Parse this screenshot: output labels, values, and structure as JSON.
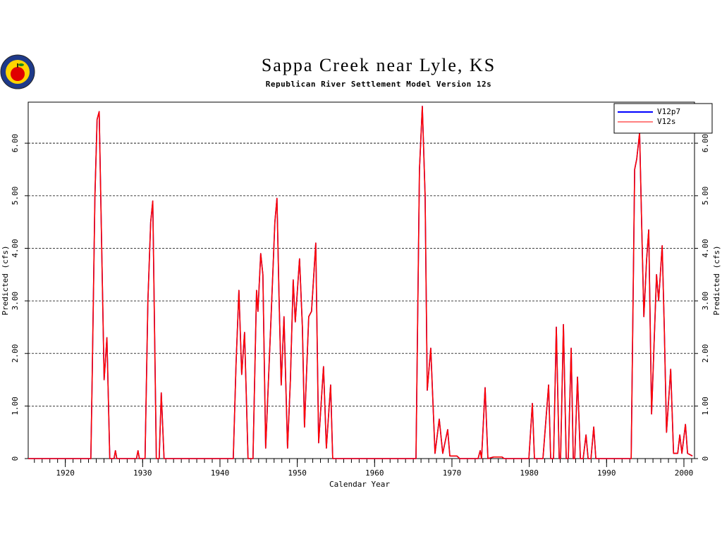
{
  "chart_data": {
    "type": "line",
    "title": "Sappa Creek near Lyle, KS",
    "subtitle": "Republican River Settlement Model Version 12s",
    "xlabel": "Calendar Year",
    "ylabel": "Predicted (cfs)",
    "y2label": "Predicted (cfs)",
    "xlim": [
      1915.2,
      2001.37
    ],
    "xticks": [
      1920,
      1930,
      1940,
      1950,
      1960,
      1970,
      1980,
      1990,
      2000
    ],
    "ylim": [
      0,
      6.78
    ],
    "yticks": [
      0,
      {
        "value": 1,
        "label": "1.00"
      },
      {
        "value": 2,
        "label": "2.00"
      },
      {
        "value": 3,
        "label": "3.00"
      },
      {
        "value": 4,
        "label": "4.00"
      },
      {
        "value": 5,
        "label": "5.00"
      },
      {
        "value": 6,
        "label": "6.00"
      }
    ],
    "y2lim": [
      0,
      6.78
    ],
    "y2ticks": [
      0,
      {
        "value": 1,
        "label": "1.00"
      },
      {
        "value": 2,
        "label": "2.00"
      },
      {
        "value": 3,
        "label": "3.00"
      },
      {
        "value": 4,
        "label": "4.00"
      },
      {
        "value": 5,
        "label": "5.00"
      },
      {
        "value": 6,
        "label": "6.00"
      }
    ],
    "grid": true,
    "legend": "upper right",
    "x": [
      1915.2,
      1923.3,
      1923.47,
      1923.83,
      1924.11,
      1924.38,
      1925.02,
      1925.38,
      1925.75,
      1926.3,
      1926.48,
      1926.66,
      1929.2,
      1929.4,
      1929.58,
      1930.31,
      1930.68,
      1931.04,
      1931.31,
      1931.77,
      1932.14,
      1932.41,
      1932.77,
      1941.72,
      1942.08,
      1942.45,
      1942.81,
      1943.18,
      1943.63,
      1944.27,
      1944.73,
      1944.91,
      1945.27,
      1945.55,
      1945.91,
      1946.64,
      1947.1,
      1947.37,
      1947.65,
      1947.92,
      1948.28,
      1948.74,
      1949.11,
      1949.47,
      1949.74,
      1950.29,
      1950.66,
      1950.93,
      1951.48,
      1951.84,
      1952.39,
      1952.76,
      1953.39,
      1953.76,
      1954.31,
      1954.58,
      1965.35,
      1965.8,
      1966.17,
      1966.53,
      1966.81,
      1967.26,
      1967.81,
      1968.36,
      1968.81,
      1969.45,
      1969.73,
      1970.64,
      1971.0,
      1973.38,
      1973.65,
      1973.83,
      1974.29,
      1974.65,
      1975.38,
      1976.48,
      1976.75,
      1979.95,
      1980.4,
      1980.67,
      1981.77,
      1982.5,
      1982.77,
      1983.14,
      1983.5,
      1983.87,
      1984.05,
      1984.42,
      1984.78,
      1985.05,
      1985.42,
      1985.69,
      1985.88,
      1986.24,
      1986.61,
      1986.97,
      1987.34,
      1987.61,
      1987.98,
      1988.34,
      1988.61,
      1993.18,
      1993.63,
      1993.9,
      1994.27,
      1994.53,
      1994.82,
      1995.18,
      1995.45,
      1995.82,
      1996.46,
      1996.73,
      1997.19,
      1997.46,
      1997.75,
      1998.29,
      1998.66,
      1999.2,
      1999.47,
      1999.74,
      2000.2,
      2000.47,
      2001.1
    ],
    "series": [
      {
        "name": "V12p7",
        "color": "#0000ff",
        "values": [
          0,
          0,
          1.5,
          5.0,
          6.45,
          6.6,
          1.5,
          2.3,
          0,
          0,
          0.15,
          0,
          0,
          0.15,
          0,
          0,
          3.0,
          4.5,
          4.9,
          0,
          0,
          1.25,
          0,
          0,
          1.8,
          3.2,
          1.6,
          2.4,
          0,
          0,
          3.2,
          2.8,
          3.9,
          3.5,
          0.2,
          2.8,
          4.5,
          4.95,
          3.0,
          1.4,
          2.7,
          0.2,
          1.5,
          3.4,
          2.6,
          3.8,
          2.5,
          0.6,
          2.7,
          2.8,
          4.1,
          0.3,
          1.75,
          0.2,
          1.4,
          0,
          0,
          5.5,
          6.7,
          5.0,
          1.3,
          2.1,
          0.1,
          0.75,
          0.1,
          0.55,
          0.05,
          0.05,
          0,
          0,
          0.15,
          0,
          1.35,
          0,
          0.03,
          0.03,
          0,
          0,
          1.05,
          0,
          0,
          1.4,
          0,
          0,
          2.5,
          0,
          0,
          2.55,
          0,
          0,
          2.1,
          0,
          0,
          1.55,
          0,
          0,
          0.45,
          0,
          0,
          0.6,
          0,
          0,
          5.5,
          5.7,
          6.2,
          4.5,
          2.7,
          3.8,
          4.35,
          0.85,
          3.5,
          3.0,
          4.05,
          2.5,
          0.5,
          1.7,
          0.1,
          0.1,
          0.45,
          0.1,
          0.65,
          0.1,
          0.05
        ]
      },
      {
        "name": "V12s",
        "color": "#ff0000",
        "values": [
          0,
          0,
          1.5,
          5.0,
          6.45,
          6.6,
          1.5,
          2.3,
          0,
          0,
          0.15,
          0,
          0,
          0.15,
          0,
          0,
          3.0,
          4.5,
          4.9,
          0,
          0,
          1.25,
          0,
          0,
          1.8,
          3.2,
          1.6,
          2.4,
          0,
          0,
          3.2,
          2.8,
          3.9,
          3.5,
          0.2,
          2.8,
          4.5,
          4.95,
          3.0,
          1.4,
          2.7,
          0.2,
          1.5,
          3.4,
          2.6,
          3.8,
          2.5,
          0.6,
          2.7,
          2.8,
          4.1,
          0.3,
          1.75,
          0.2,
          1.4,
          0,
          0,
          5.5,
          6.7,
          5.0,
          1.3,
          2.1,
          0.1,
          0.75,
          0.1,
          0.55,
          0.05,
          0.05,
          0,
          0,
          0.15,
          0,
          1.35,
          0,
          0.03,
          0.03,
          0,
          0,
          1.05,
          0,
          0,
          1.4,
          0,
          0,
          2.5,
          0,
          0,
          2.55,
          0,
          0,
          2.1,
          0,
          0,
          1.55,
          0,
          0,
          0.45,
          0,
          0,
          0.6,
          0,
          0,
          5.5,
          5.7,
          6.2,
          4.5,
          2.7,
          3.8,
          4.35,
          0.85,
          3.5,
          3.0,
          4.05,
          2.5,
          0.5,
          1.7,
          0.1,
          0.1,
          0.45,
          0.1,
          0.65,
          0.1,
          0.05
        ]
      }
    ]
  }
}
